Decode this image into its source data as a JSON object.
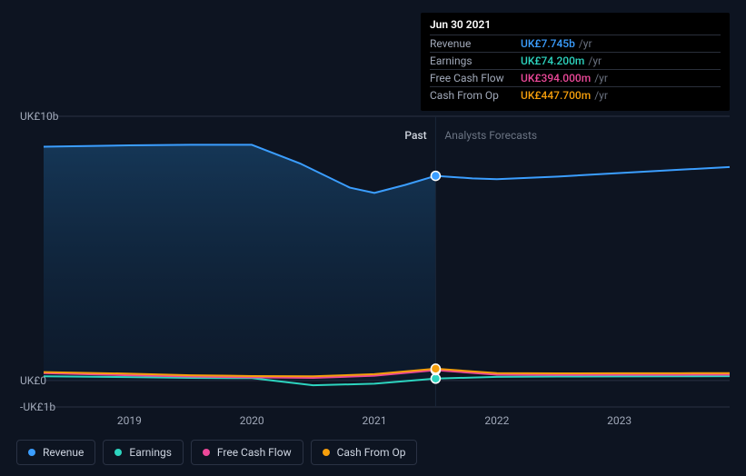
{
  "chart": {
    "type": "line",
    "background_color": "#0d1421",
    "past_fill_gradient": [
      "#163a5c",
      "#0d2138"
    ],
    "grid_color": "#2a3244",
    "y_axis": {
      "ticks": [
        {
          "label": "UK£10b",
          "value": 10000
        },
        {
          "label": "UK£0",
          "value": 0
        },
        {
          "label": "-UK£1b",
          "value": -1000
        }
      ],
      "min": -1000,
      "max": 10000
    },
    "x_axis": {
      "ticks": [
        "2019",
        "2020",
        "2021",
        "2022",
        "2023"
      ],
      "min": 2018.3,
      "max": 2023.9,
      "divider": 2021.5
    },
    "divider_labels": {
      "past": "Past",
      "forecast": "Analysts Forecasts"
    },
    "series": [
      {
        "name": "Revenue",
        "color": "#3b9eff",
        "fill": true,
        "data": [
          [
            2018.3,
            8850
          ],
          [
            2019.0,
            8900
          ],
          [
            2019.5,
            8920
          ],
          [
            2020.0,
            8920
          ],
          [
            2020.4,
            8200
          ],
          [
            2020.8,
            7300
          ],
          [
            2021.0,
            7100
          ],
          [
            2021.25,
            7400
          ],
          [
            2021.5,
            7745
          ],
          [
            2021.8,
            7650
          ],
          [
            2022.0,
            7620
          ],
          [
            2022.5,
            7720
          ],
          [
            2023.0,
            7850
          ],
          [
            2023.5,
            7980
          ],
          [
            2023.9,
            8080
          ]
        ],
        "marker_at": 2021.5
      },
      {
        "name": "Earnings",
        "color": "#2dd4bf",
        "fill": false,
        "data": [
          [
            2018.3,
            160
          ],
          [
            2019.0,
            130
          ],
          [
            2019.5,
            100
          ],
          [
            2020.0,
            90
          ],
          [
            2020.5,
            -180
          ],
          [
            2021.0,
            -120
          ],
          [
            2021.5,
            74.2
          ],
          [
            2022.0,
            140
          ],
          [
            2022.5,
            150
          ],
          [
            2023.0,
            155
          ],
          [
            2023.5,
            160
          ],
          [
            2023.9,
            165
          ]
        ],
        "marker_at": 2021.5
      },
      {
        "name": "Free Cash Flow",
        "color": "#ec4899",
        "fill": false,
        "data": [
          [
            2018.3,
            280
          ],
          [
            2019.0,
            200
          ],
          [
            2019.5,
            150
          ],
          [
            2020.0,
            120
          ],
          [
            2020.5,
            100
          ],
          [
            2021.0,
            180
          ],
          [
            2021.5,
            394
          ],
          [
            2022.0,
            220
          ],
          [
            2022.5,
            210
          ],
          [
            2023.0,
            215
          ],
          [
            2023.5,
            218
          ],
          [
            2023.9,
            220
          ]
        ],
        "marker_at": 2021.5
      },
      {
        "name": "Cash From Op",
        "color": "#f59e0b",
        "fill": false,
        "data": [
          [
            2018.3,
            320
          ],
          [
            2019.0,
            260
          ],
          [
            2019.5,
            200
          ],
          [
            2020.0,
            170
          ],
          [
            2020.5,
            160
          ],
          [
            2021.0,
            240
          ],
          [
            2021.5,
            447.7
          ],
          [
            2022.0,
            280
          ],
          [
            2022.5,
            270
          ],
          [
            2023.0,
            275
          ],
          [
            2023.5,
            278
          ],
          [
            2023.9,
            280
          ]
        ],
        "marker_at": 2021.5
      }
    ]
  },
  "tooltip": {
    "date": "Jun 30 2021",
    "unit": "/yr",
    "rows": [
      {
        "label": "Revenue",
        "value": "UK£7.745b",
        "color": "#3b9eff"
      },
      {
        "label": "Earnings",
        "value": "UK£74.200m",
        "color": "#2dd4bf"
      },
      {
        "label": "Free Cash Flow",
        "value": "UK£394.000m",
        "color": "#ec4899"
      },
      {
        "label": "Cash From Op",
        "value": "UK£447.700m",
        "color": "#f59e0b"
      }
    ]
  },
  "legend": [
    {
      "label": "Revenue",
      "color": "#3b9eff"
    },
    {
      "label": "Earnings",
      "color": "#2dd4bf"
    },
    {
      "label": "Free Cash Flow",
      "color": "#ec4899"
    },
    {
      "label": "Cash From Op",
      "color": "#f59e0b"
    }
  ]
}
